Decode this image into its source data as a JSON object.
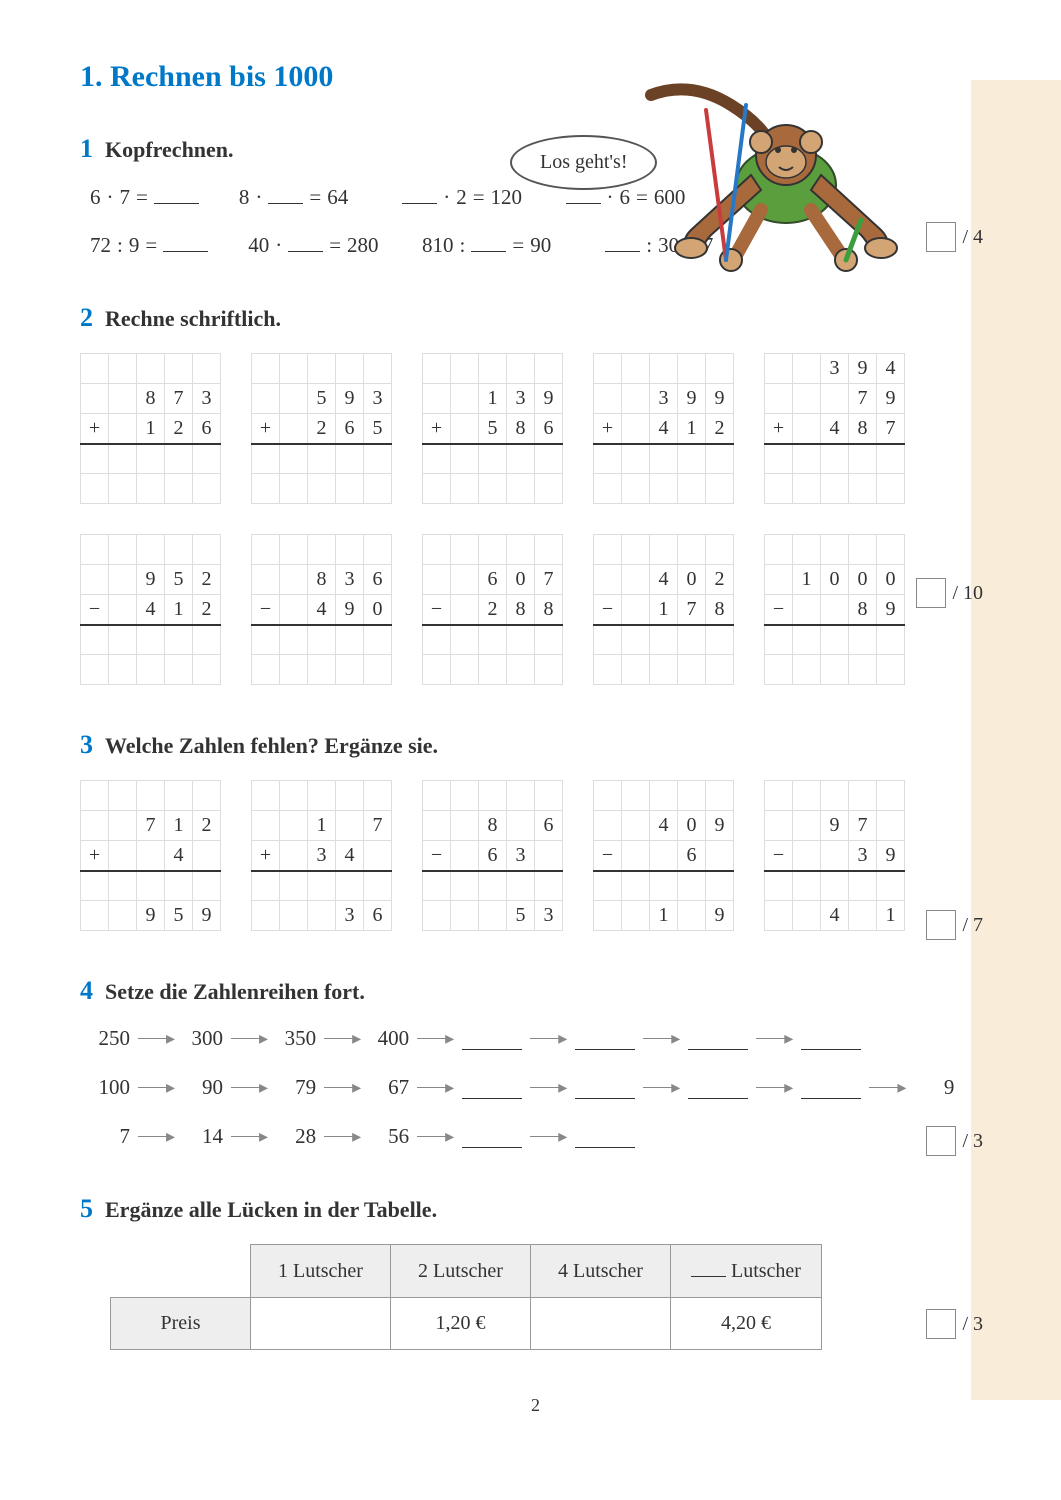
{
  "title": "1. Rechnen bis 1000",
  "speech": "Los geht's!",
  "page_number": "2",
  "tasks": {
    "t1": {
      "num": "1",
      "title": "Kopfrechnen.",
      "score_max": "/ 4",
      "row1": [
        {
          "a": "6",
          "op": "·",
          "b": "7",
          "eq": "=",
          "r": ""
        },
        {
          "a": "8",
          "op": "·",
          "b": "",
          "eq": "=",
          "r": "64"
        },
        {
          "a": "",
          "op": "·",
          "b": "2",
          "eq": "=",
          "r": "120"
        },
        {
          "a": "",
          "op": "·",
          "b": "6",
          "eq": "=",
          "r": "600"
        }
      ],
      "row2": [
        {
          "a": "72",
          "op": ":",
          "b": "9",
          "eq": "=",
          "r": ""
        },
        {
          "a": "40",
          "op": "·",
          "b": "",
          "eq": "=",
          "r": "280"
        },
        {
          "a": "810",
          "op": ":",
          "b": "",
          "eq": "=",
          "r": "90"
        },
        {
          "a": "",
          "op": ":",
          "b": "30",
          "eq": "=",
          "r": "7"
        }
      ]
    },
    "t2": {
      "num": "2",
      "title": "Rechne schriftlich.",
      "score_max": "/ 10",
      "add": [
        {
          "extra": [
            "",
            "",
            "",
            ""
          ],
          "n1": [
            "",
            "8",
            "7",
            "3"
          ],
          "op": "+",
          "n2": [
            "1",
            "2",
            "6"
          ]
        },
        {
          "extra": [
            "",
            "",
            "",
            ""
          ],
          "n1": [
            "",
            "5",
            "9",
            "3"
          ],
          "op": "+",
          "n2": [
            "2",
            "6",
            "5"
          ]
        },
        {
          "extra": [
            "",
            "",
            "",
            ""
          ],
          "n1": [
            "",
            "1",
            "3",
            "9"
          ],
          "op": "+",
          "n2": [
            "5",
            "8",
            "6"
          ]
        },
        {
          "extra": [
            "",
            "",
            "",
            ""
          ],
          "n1": [
            "",
            "3",
            "9",
            "9"
          ],
          "op": "+",
          "n2": [
            "4",
            "1",
            "2"
          ]
        },
        {
          "extra": [
            "",
            "3",
            "9",
            "4"
          ],
          "n1": [
            "",
            "",
            "7",
            "9"
          ],
          "op": "+",
          "n2": [
            "4",
            "8",
            "7"
          ]
        }
      ],
      "sub": [
        {
          "n1": [
            "",
            "9",
            "5",
            "2"
          ],
          "op": "−",
          "n2": [
            "4",
            "1",
            "2"
          ]
        },
        {
          "n1": [
            "",
            "8",
            "3",
            "6"
          ],
          "op": "−",
          "n2": [
            "4",
            "9",
            "0"
          ]
        },
        {
          "n1": [
            "",
            "6",
            "0",
            "7"
          ],
          "op": "−",
          "n2": [
            "2",
            "8",
            "8"
          ]
        },
        {
          "n1": [
            "",
            "4",
            "0",
            "2"
          ],
          "op": "−",
          "n2": [
            "1",
            "7",
            "8"
          ]
        },
        {
          "n1": [
            "1",
            "0",
            "0",
            "0"
          ],
          "op": "−",
          "n2": [
            "",
            "8",
            "9"
          ]
        }
      ]
    },
    "t3": {
      "num": "3",
      "title": "Welche Zahlen fehlen? Ergänze sie.",
      "score_max": "/ 7",
      "probs": [
        {
          "n1": [
            "",
            "7",
            "1",
            "2"
          ],
          "op": "+",
          "n2": [
            "",
            "4",
            ""
          ],
          "res": [
            "",
            "9",
            "5",
            "9"
          ]
        },
        {
          "n1": [
            "",
            "1",
            "",
            "7"
          ],
          "op": "+",
          "n2": [
            "3",
            "4",
            ""
          ],
          "res": [
            "",
            "",
            "3",
            "6"
          ]
        },
        {
          "n1": [
            "",
            "8",
            "",
            "6"
          ],
          "op": "−",
          "n2": [
            "6",
            "3",
            ""
          ],
          "res": [
            "",
            "",
            "5",
            "3"
          ]
        },
        {
          "n1": [
            "",
            "4",
            "0",
            "9"
          ],
          "op": "−",
          "n2": [
            "",
            "6",
            ""
          ],
          "res": [
            "",
            "1",
            "",
            "9"
          ]
        },
        {
          "n1": [
            "",
            "9",
            "7",
            ""
          ],
          "op": "−",
          "n2": [
            "",
            "3",
            "9"
          ],
          "res": [
            "",
            "4",
            "",
            "1"
          ]
        }
      ]
    },
    "t4": {
      "num": "4",
      "title": "Setze die Zahlenreihen fort.",
      "score_max": "/ 3",
      "seqs": [
        {
          "given": [
            "250",
            "300",
            "350",
            "400"
          ],
          "blanks": 4,
          "end": ""
        },
        {
          "given": [
            "100",
            "90",
            "79",
            "67"
          ],
          "blanks": 4,
          "end": "9"
        },
        {
          "given": [
            "7",
            "14",
            "28",
            "56"
          ],
          "blanks": 2,
          "end": ""
        }
      ]
    },
    "t5": {
      "num": "5",
      "title": "Ergänze alle Lücken in der Tabelle.",
      "score_max": "/ 3",
      "headers": [
        "1 Lutscher",
        "2 Lutscher",
        "4 Lutscher",
        " Lutscher"
      ],
      "row_label": "Preis",
      "row": [
        "",
        "1,20 €",
        "",
        "4,20 €"
      ],
      "blank_header_index": 3
    }
  },
  "colors": {
    "accent": "#0078c8",
    "strip": "#f9ecd9",
    "monkey_body": "#a86a3d",
    "monkey_shorts": "#5a9e3d"
  }
}
